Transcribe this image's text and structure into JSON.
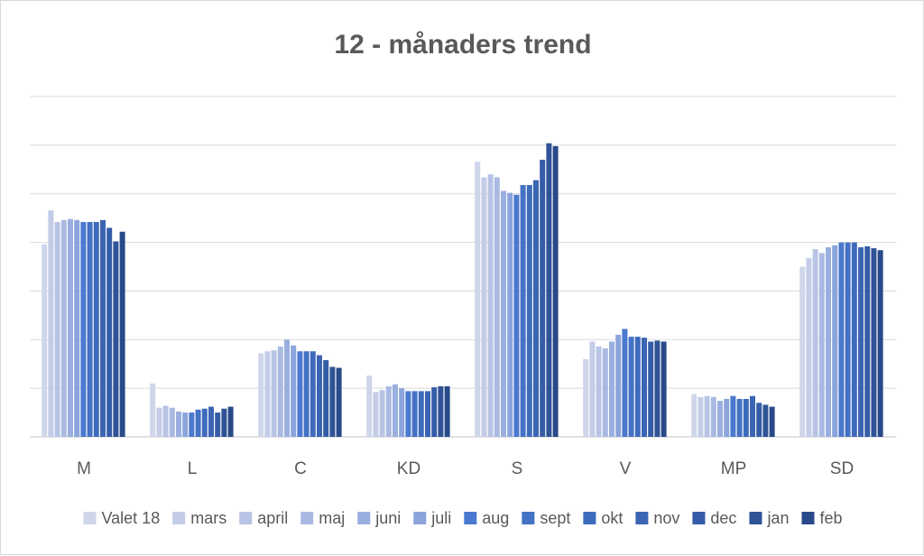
{
  "chart_data": {
    "type": "bar",
    "title": "12 - månaders trend",
    "xlabel": "",
    "ylabel": "",
    "ylim": [
      0,
      35
    ],
    "grid": true,
    "legend_position": "bottom",
    "categories": [
      "M",
      "L",
      "C",
      "KD",
      "S",
      "V",
      "MP",
      "SD"
    ],
    "series": [
      {
        "name": "Valet 18",
        "color": "#cfd6ea",
        "values": [
          19.8,
          5.5,
          8.6,
          6.3,
          28.3,
          8.0,
          4.4,
          17.5
        ]
      },
      {
        "name": "mars",
        "color": "#c3cde8",
        "values": [
          23.3,
          3.0,
          8.8,
          4.6,
          26.7,
          9.8,
          4.1,
          18.4
        ]
      },
      {
        "name": "april",
        "color": "#b7c4e5",
        "values": [
          22.1,
          3.2,
          8.9,
          4.8,
          27.0,
          9.3,
          4.2,
          19.3
        ]
      },
      {
        "name": "maj",
        "color": "#a9b9e2",
        "values": [
          22.3,
          3.0,
          9.3,
          5.2,
          26.7,
          9.1,
          4.1,
          18.9
        ]
      },
      {
        "name": "juni",
        "color": "#9aafdf",
        "values": [
          22.4,
          2.6,
          10.0,
          5.4,
          25.3,
          9.8,
          3.7,
          19.5
        ]
      },
      {
        "name": "juli",
        "color": "#8ba4dc",
        "values": [
          22.3,
          2.5,
          9.4,
          5.0,
          25.1,
          10.5,
          3.9,
          19.7
        ]
      },
      {
        "name": "aug",
        "color": "#4a79cf",
        "values": [
          22.1,
          2.5,
          8.8,
          4.7,
          24.9,
          11.1,
          4.2,
          20.0
        ]
      },
      {
        "name": "sept",
        "color": "#4472c4",
        "values": [
          22.1,
          2.8,
          8.8,
          4.7,
          25.9,
          10.3,
          3.9,
          20.0
        ]
      },
      {
        "name": "okt",
        "color": "#3f6bbd",
        "values": [
          22.1,
          2.9,
          8.8,
          4.7,
          25.9,
          10.3,
          3.9,
          20.0
        ]
      },
      {
        "name": "nov",
        "color": "#3b65b4",
        "values": [
          22.3,
          3.1,
          8.4,
          4.7,
          26.4,
          10.2,
          4.2,
          19.5
        ]
      },
      {
        "name": "dec",
        "color": "#355ca7",
        "values": [
          21.5,
          2.5,
          7.9,
          5.1,
          28.5,
          9.8,
          3.5,
          19.6
        ]
      },
      {
        "name": "jan",
        "color": "#2f5396",
        "values": [
          20.1,
          2.9,
          7.2,
          5.2,
          30.2,
          9.9,
          3.3,
          19.4
        ]
      },
      {
        "name": "feb",
        "color": "#284a88",
        "values": [
          21.1,
          3.1,
          7.1,
          5.2,
          29.9,
          9.8,
          3.1,
          19.2
        ]
      }
    ]
  }
}
